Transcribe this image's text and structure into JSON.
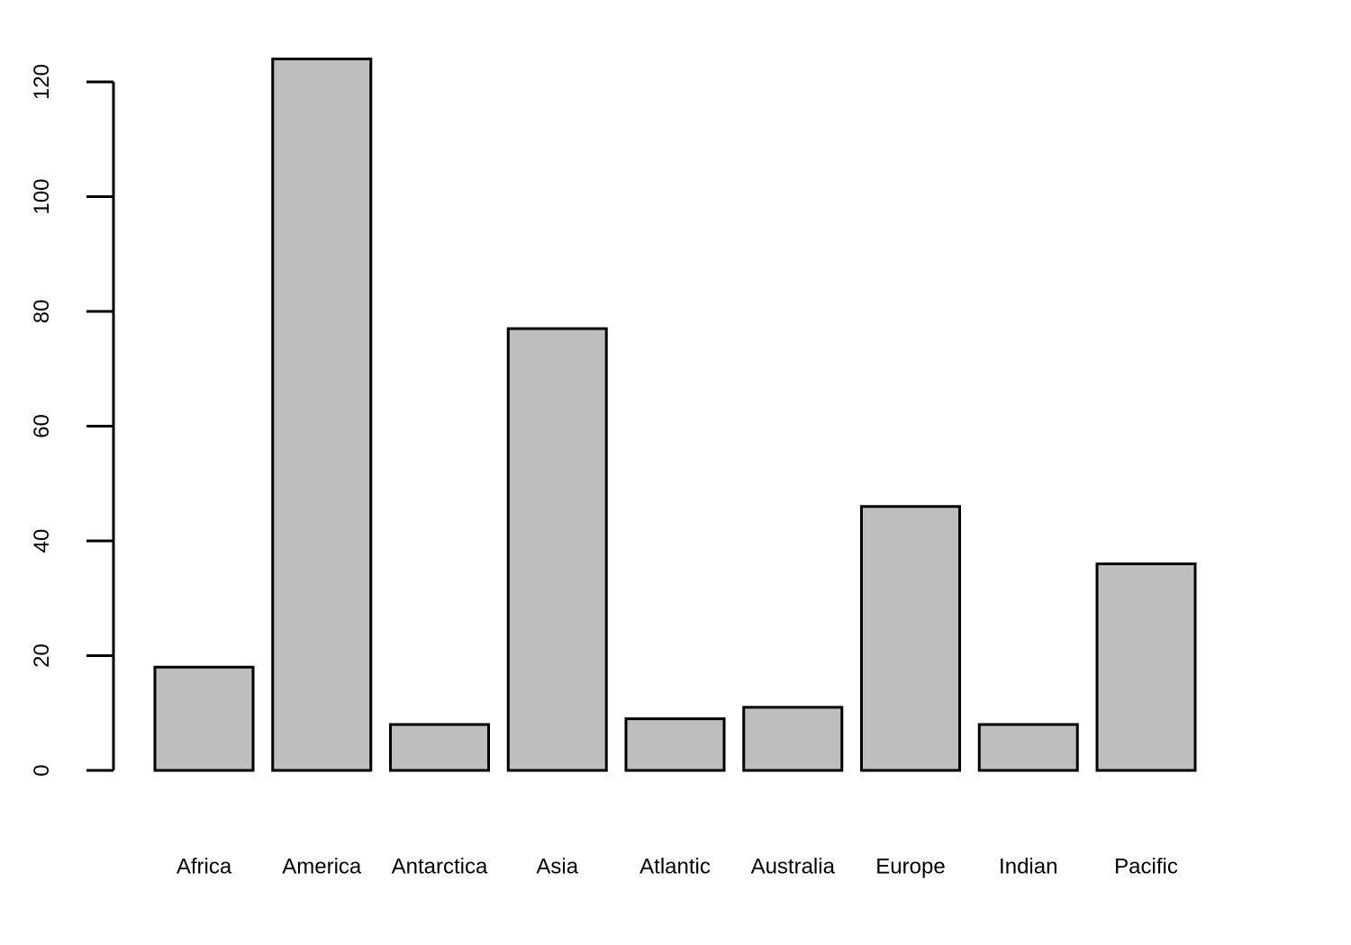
{
  "chart_data": {
    "type": "bar",
    "categories": [
      "Africa",
      "America",
      "Antarctica",
      "Asia",
      "Atlantic",
      "Australia",
      "Europe",
      "Indian",
      "Pacific"
    ],
    "values": [
      18,
      124,
      8,
      77,
      9,
      11,
      46,
      8,
      36
    ],
    "title": "",
    "xlabel": "",
    "ylabel": "",
    "ylim": [
      0,
      124
    ],
    "yticks": [
      0,
      20,
      40,
      60,
      80,
      100,
      120
    ],
    "grid": false,
    "bar_fill": "#bebebe",
    "bar_stroke": "#000000",
    "background": "#ffffff"
  }
}
